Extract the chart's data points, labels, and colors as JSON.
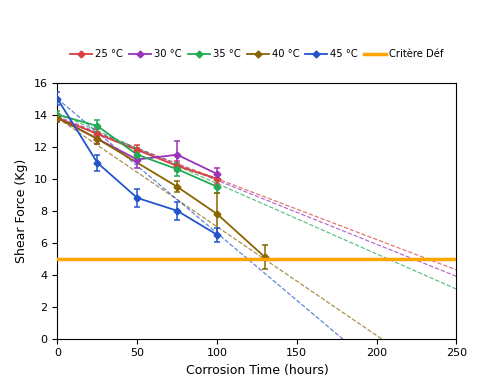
{
  "xlabel": "Corrosion Time (hours)",
  "ylabel": "Shear Force (Kg)",
  "xlim": [
    0,
    250
  ],
  "ylim": [
    0,
    16
  ],
  "yticks": [
    0,
    2,
    4,
    6,
    8,
    10,
    12,
    14,
    16
  ],
  "xticks": [
    0,
    50,
    100,
    150,
    200,
    250
  ],
  "criterion": 5.0,
  "criterion_label": "Critère Déf",
  "criterion_color": "#FFA500",
  "series": [
    {
      "label": "25 °C",
      "color": "#d94040",
      "x": [
        0,
        25,
        50,
        75,
        100
      ],
      "y": [
        13.8,
        12.8,
        11.8,
        10.8,
        10.0
      ],
      "yerr": [
        0.25,
        0.3,
        0.3,
        0.3,
        0.3
      ],
      "slope": -0.038,
      "intercept": 13.8
    },
    {
      "label": "30 °C",
      "color": "#9933bb",
      "x": [
        0,
        25,
        50,
        75,
        100
      ],
      "y": [
        13.8,
        12.5,
        11.2,
        11.5,
        10.3
      ],
      "yerr": [
        0.25,
        0.35,
        0.5,
        0.85,
        0.4
      ],
      "slope": -0.04,
      "intercept": 13.9
    },
    {
      "label": "35 °C",
      "color": "#22aa55",
      "x": [
        0,
        25,
        50,
        75,
        100
      ],
      "y": [
        14.0,
        13.3,
        11.5,
        10.6,
        9.5
      ],
      "yerr": [
        0.25,
        0.4,
        0.4,
        0.4,
        0.4
      ],
      "slope": -0.044,
      "intercept": 14.1
    },
    {
      "label": "40 °C",
      "color": "#8B6400",
      "x": [
        0,
        25,
        75,
        100,
        130
      ],
      "y": [
        13.8,
        12.5,
        9.5,
        7.8,
        5.1
      ],
      "yerr": [
        0.25,
        0.3,
        0.35,
        1.3,
        0.75
      ],
      "slope": -0.068,
      "intercept": 13.8
    },
    {
      "label": "45 °C",
      "color": "#2255cc",
      "x": [
        0,
        25,
        50,
        75,
        100
      ],
      "y": [
        15.0,
        11.0,
        8.8,
        8.0,
        6.5
      ],
      "yerr": [
        0.4,
        0.5,
        0.55,
        0.55,
        0.45
      ],
      "slope": -0.084,
      "intercept": 15.0
    }
  ]
}
